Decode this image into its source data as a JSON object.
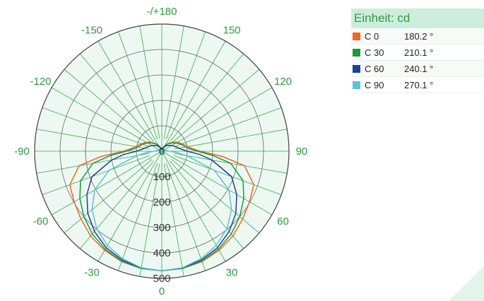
{
  "legend": {
    "header": "Einheit: cd",
    "entries": [
      {
        "name": "C  0",
        "angle": "180.2 °",
        "color": "#f26522"
      },
      {
        "name": "C 30",
        "angle": "210.1 °",
        "color": "#1a9a3c"
      },
      {
        "name": "C 60",
        "angle": "240.1 °",
        "color": "#1f3f99"
      },
      {
        "name": "C 90",
        "angle": "270.1 °",
        "color": "#5bc3d6"
      }
    ]
  },
  "chart_data": {
    "type": "polar",
    "unit": "cd",
    "radial_ticks": [
      0,
      100,
      200,
      300,
      400,
      500
    ],
    "rmax": 500,
    "angle_labels": [
      {
        "angle": 180,
        "text": "-/+180"
      },
      {
        "angle": -150,
        "text": "-150"
      },
      {
        "angle": 150,
        "text": "150"
      },
      {
        "angle": -120,
        "text": "-120"
      },
      {
        "angle": 120,
        "text": "120"
      },
      {
        "angle": -90,
        "text": "-90"
      },
      {
        "angle": 90,
        "text": "90"
      },
      {
        "angle": -60,
        "text": "-60"
      },
      {
        "angle": 60,
        "text": "60"
      },
      {
        "angle": -30,
        "text": "-30"
      },
      {
        "angle": 30,
        "text": "30"
      },
      {
        "angle": 0,
        "text": "0"
      }
    ],
    "series": [
      {
        "name": "C  0",
        "color": "#f26522",
        "gamma": [
          0,
          10,
          20,
          30,
          40,
          50,
          60,
          70,
          80,
          85,
          90,
          95,
          100,
          110,
          120,
          130,
          140,
          150,
          160,
          170,
          180
        ],
        "values": [
          470,
          468,
          462,
          450,
          435,
          415,
          398,
          385,
          330,
          240,
          150,
          120,
          105,
          85,
          70,
          55,
          40,
          28,
          15,
          5,
          0
        ]
      },
      {
        "name": "C 30",
        "color": "#1a9a3c",
        "gamma": [
          0,
          10,
          20,
          30,
          40,
          50,
          60,
          70,
          80,
          85,
          90,
          95,
          100,
          110,
          120,
          130,
          140,
          150,
          160,
          170,
          180
        ],
        "values": [
          470,
          468,
          460,
          445,
          425,
          400,
          372,
          340,
          275,
          205,
          140,
          110,
          95,
          80,
          65,
          50,
          38,
          26,
          14,
          5,
          0
        ]
      },
      {
        "name": "C 60",
        "color": "#1f3f99",
        "gamma": [
          0,
          10,
          20,
          30,
          40,
          50,
          60,
          70,
          80,
          85,
          90,
          95,
          100,
          110,
          120,
          130,
          140,
          150,
          160,
          170,
          180
        ],
        "values": [
          470,
          466,
          455,
          438,
          412,
          380,
          340,
          292,
          200,
          150,
          100,
          80,
          68,
          55,
          45,
          36,
          28,
          20,
          12,
          5,
          0
        ]
      },
      {
        "name": "C 90",
        "color": "#5bc3d6",
        "gamma": [
          0,
          10,
          20,
          30,
          40,
          50,
          60,
          70,
          80,
          85,
          90,
          95,
          100,
          110,
          120,
          130,
          140,
          150,
          160,
          170,
          180
        ],
        "values": [
          470,
          465,
          450,
          428,
          398,
          358,
          305,
          220,
          100,
          60,
          30,
          22,
          18,
          14,
          11,
          9,
          7,
          5,
          3,
          1,
          0
        ]
      }
    ]
  }
}
